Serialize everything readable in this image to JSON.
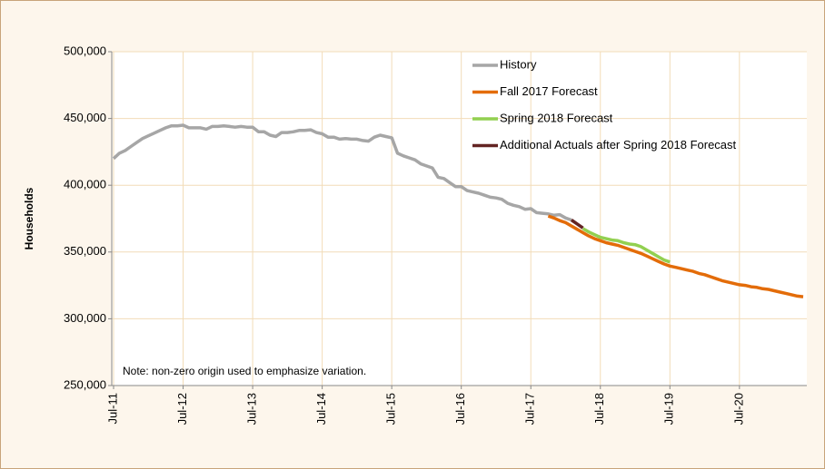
{
  "chart_data": {
    "type": "line",
    "ylabel": "Households",
    "annotation": "Note: non-zero origin used to emphasize variation.",
    "categories": [
      "Jul-11",
      null,
      null,
      null,
      null,
      null,
      null,
      null,
      null,
      null,
      null,
      null,
      "Jul-12",
      null,
      null,
      null,
      null,
      null,
      null,
      null,
      null,
      null,
      null,
      null,
      "Jul-13",
      null,
      null,
      null,
      null,
      null,
      null,
      null,
      null,
      null,
      null,
      null,
      "Jul-14",
      null,
      null,
      null,
      null,
      null,
      null,
      null,
      null,
      null,
      null,
      null,
      "Jul-15",
      null,
      null,
      null,
      null,
      null,
      null,
      null,
      null,
      null,
      null,
      null,
      "Jul-16",
      null,
      null,
      null,
      null,
      null,
      null,
      null,
      null,
      null,
      null,
      null,
      "Jul-17",
      null,
      null,
      null,
      null,
      null,
      null,
      null,
      null,
      null,
      null,
      null,
      "Jul-18",
      null,
      null,
      null,
      null,
      null,
      null,
      null,
      null,
      null,
      null,
      null,
      "Jul-19",
      null,
      null,
      null,
      null,
      null,
      null,
      null,
      null,
      null,
      null,
      null,
      "Jul-20",
      null,
      null,
      null,
      null,
      null,
      null,
      null,
      null,
      null,
      null,
      null
    ],
    "series": [
      {
        "name": "History",
        "color": "#a6a6a6",
        "values": [
          420000,
          424000,
          426000,
          429000,
          432000,
          435000,
          437000,
          439000,
          441000,
          443000,
          444500,
          444500,
          445000,
          443000,
          443000,
          443000,
          442000,
          444000,
          444000,
          444500,
          444000,
          443500,
          444000,
          443500,
          443500,
          440000,
          440000,
          437500,
          436500,
          439500,
          439500,
          440000,
          441000,
          441000,
          441500,
          439500,
          438500,
          436000,
          436000,
          434500,
          435000,
          434500,
          434500,
          433500,
          433000,
          436000,
          437500,
          436500,
          435500,
          424000,
          422000,
          420500,
          419000,
          416000,
          414500,
          413000,
          406000,
          405000,
          402000,
          399000,
          399000,
          396000,
          395000,
          394000,
          392500,
          391000,
          390500,
          389500,
          386500,
          385000,
          384000,
          382000,
          382500,
          379500,
          379000,
          378500,
          377500,
          378000,
          375500,
          374000,
          null,
          null,
          null,
          null,
          null,
          null,
          null,
          null,
          null,
          null,
          null,
          null,
          null,
          null,
          null,
          null,
          null,
          null,
          null,
          null,
          null,
          null,
          null,
          null,
          null,
          null,
          null,
          null,
          null,
          null,
          null,
          null,
          null,
          null,
          null,
          null,
          null,
          null,
          null,
          null
        ]
      },
      {
        "name": "Fall 2017 Forecast",
        "color": "#e36c09",
        "values": [
          null,
          null,
          null,
          null,
          null,
          null,
          null,
          null,
          null,
          null,
          null,
          null,
          null,
          null,
          null,
          null,
          null,
          null,
          null,
          null,
          null,
          null,
          null,
          null,
          null,
          null,
          null,
          null,
          null,
          null,
          null,
          null,
          null,
          null,
          null,
          null,
          null,
          null,
          null,
          null,
          null,
          null,
          null,
          null,
          null,
          null,
          null,
          null,
          null,
          null,
          null,
          null,
          null,
          null,
          null,
          null,
          null,
          null,
          null,
          null,
          null,
          null,
          null,
          null,
          null,
          null,
          null,
          null,
          null,
          null,
          null,
          null,
          null,
          null,
          null,
          377000,
          375500,
          373500,
          372000,
          369500,
          367000,
          364500,
          362000,
          360000,
          358500,
          357000,
          356000,
          355000,
          353500,
          352000,
          350500,
          349000,
          347000,
          345000,
          343000,
          341000,
          339500,
          338500,
          337500,
          336500,
          335500,
          334000,
          333000,
          331500,
          330000,
          328500,
          327500,
          326500,
          325500,
          325000,
          324000,
          323500,
          322500,
          322000,
          321000,
          320000,
          319000,
          318000,
          317000,
          316500
        ]
      },
      {
        "name": "Spring 2018 Forecast",
        "color": "#92d050",
        "values": [
          null,
          null,
          null,
          null,
          null,
          null,
          null,
          null,
          null,
          null,
          null,
          null,
          null,
          null,
          null,
          null,
          null,
          null,
          null,
          null,
          null,
          null,
          null,
          null,
          null,
          null,
          null,
          null,
          null,
          null,
          null,
          null,
          null,
          null,
          null,
          null,
          null,
          null,
          null,
          null,
          null,
          null,
          null,
          null,
          null,
          null,
          null,
          null,
          null,
          null,
          null,
          null,
          null,
          null,
          null,
          null,
          null,
          null,
          null,
          null,
          null,
          null,
          null,
          null,
          null,
          null,
          null,
          null,
          null,
          null,
          null,
          null,
          null,
          null,
          null,
          null,
          null,
          null,
          null,
          null,
          null,
          367500,
          365000,
          363000,
          361000,
          360000,
          359000,
          358500,
          357000,
          356000,
          355500,
          354000,
          351500,
          349000,
          346500,
          344000,
          342500,
          null,
          null,
          null,
          null,
          null,
          null,
          null,
          null,
          null,
          null,
          null,
          null,
          null,
          null,
          null,
          null,
          null,
          null,
          null,
          null,
          null,
          null,
          null
        ]
      },
      {
        "name": "Additional Actuals after Spring 2018 Forecast",
        "color": "#632423",
        "values": [
          null,
          null,
          null,
          null,
          null,
          null,
          null,
          null,
          null,
          null,
          null,
          null,
          null,
          null,
          null,
          null,
          null,
          null,
          null,
          null,
          null,
          null,
          null,
          null,
          null,
          null,
          null,
          null,
          null,
          null,
          null,
          null,
          null,
          null,
          null,
          null,
          null,
          null,
          null,
          null,
          null,
          null,
          null,
          null,
          null,
          null,
          null,
          null,
          null,
          null,
          null,
          null,
          null,
          null,
          null,
          null,
          null,
          null,
          null,
          null,
          null,
          null,
          null,
          null,
          null,
          null,
          null,
          null,
          null,
          null,
          null,
          null,
          null,
          null,
          null,
          null,
          null,
          null,
          null,
          374000,
          371000,
          368000,
          null,
          null,
          null,
          null,
          null,
          null,
          null,
          null,
          null,
          null,
          null,
          null,
          null,
          null,
          null,
          null,
          null,
          null,
          null,
          null,
          null,
          null,
          null,
          null,
          null,
          null,
          null,
          null,
          null,
          null,
          null,
          null,
          null,
          null,
          null,
          null,
          null,
          null
        ]
      }
    ],
    "ylim": [
      250000,
      500000
    ],
    "yticks": [
      {
        "value": 250000,
        "label": "250,000"
      },
      {
        "value": 300000,
        "label": "300,000"
      },
      {
        "value": 350000,
        "label": "350,000"
      },
      {
        "value": 400000,
        "label": "400,000"
      },
      {
        "value": 450000,
        "label": "450,000"
      },
      {
        "value": 500000,
        "label": "500,000"
      }
    ],
    "grid": true,
    "legend": "top-right"
  }
}
